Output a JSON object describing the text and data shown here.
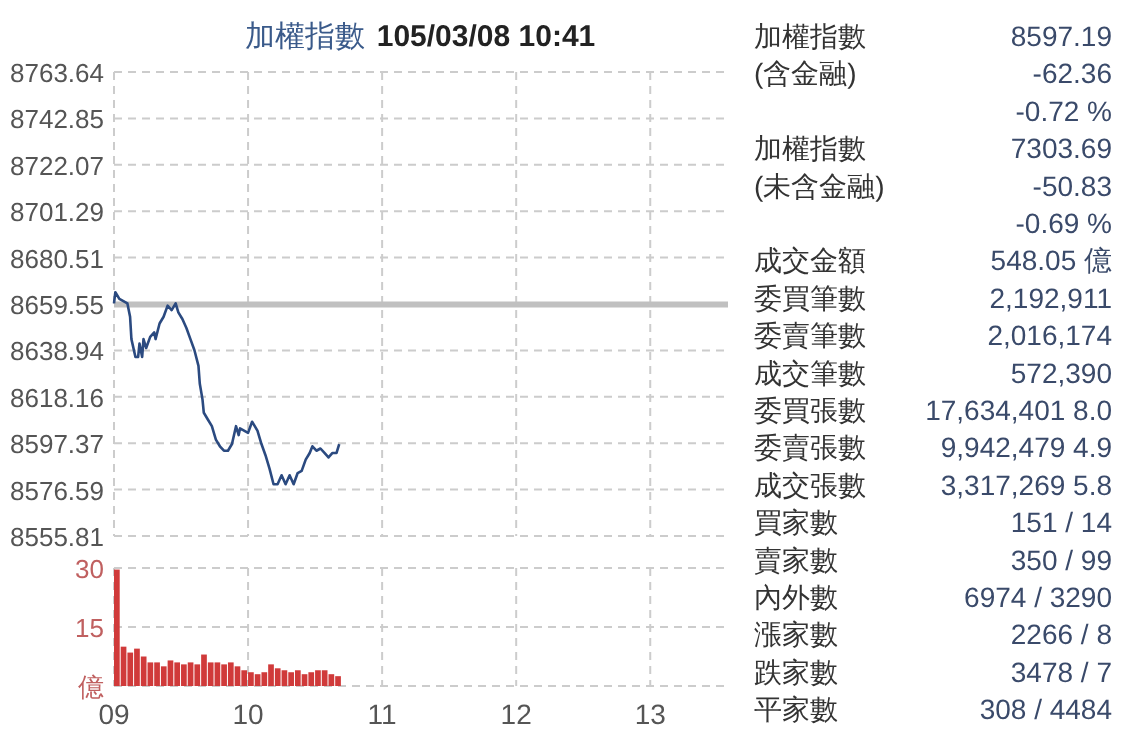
{
  "chart_data": [
    {
      "type": "line",
      "title": "加權指數",
      "subtitle": "105/03/08 10:41",
      "xlim": [
        9,
        13.58
      ],
      "xticks": [
        9,
        10,
        11,
        12,
        13
      ],
      "ylim": [
        8555.81,
        8763.64
      ],
      "yticks": [
        8555.81,
        8576.59,
        8597.37,
        8618.16,
        8638.94,
        8659.55,
        8680.51,
        8701.29,
        8722.07,
        8742.85,
        8763.64
      ],
      "grid": true,
      "tick_labels": "y",
      "ref_lines": [
        {
          "axis": "y",
          "value": 8659.55,
          "color": "#c0c0c0"
        }
      ],
      "series": [
        {
          "color": "#2b4a80",
          "x": [
            9.0,
            9.01,
            9.04,
            9.07,
            9.1,
            9.12,
            9.13,
            9.16,
            9.18,
            9.19,
            9.21,
            9.22,
            9.24,
            9.27,
            9.3,
            9.31,
            9.34,
            9.37,
            9.4,
            9.43,
            9.46,
            9.48,
            9.51,
            9.54,
            9.57,
            9.6,
            9.63,
            9.64,
            9.66,
            9.67,
            9.7,
            9.73,
            9.76,
            9.79,
            9.82,
            9.85,
            9.88,
            9.91,
            9.93,
            9.94,
            9.97,
            10.0,
            10.03,
            10.04,
            10.07,
            10.1,
            10.13,
            10.16,
            10.19,
            10.22,
            10.25,
            10.28,
            10.31,
            10.34,
            10.37,
            10.4,
            10.43,
            10.46,
            10.48,
            10.51,
            10.54,
            10.57,
            10.6,
            10.63,
            10.66,
            10.68
          ],
          "values": [
            8660,
            8665,
            8662,
            8661,
            8660,
            8654,
            8644,
            8636,
            8636,
            8642,
            8636,
            8644,
            8640,
            8645,
            8647,
            8644,
            8651,
            8654,
            8659,
            8657,
            8660,
            8656,
            8653,
            8649,
            8644,
            8639,
            8632,
            8624,
            8617,
            8611,
            8608,
            8605,
            8599,
            8596,
            8594,
            8594,
            8597,
            8605,
            8601,
            8604,
            8603,
            8602,
            8607,
            8606,
            8603,
            8597,
            8592,
            8586,
            8579,
            8579,
            8583,
            8579,
            8583,
            8579,
            8584,
            8585,
            8590,
            8593,
            8596,
            8594,
            8595,
            8593,
            8591,
            8593,
            8593,
            8597
          ]
        }
      ]
    },
    {
      "type": "bar",
      "xlim": [
        9,
        13.58
      ],
      "xticks": [
        {
          "value": 9,
          "label": "09"
        },
        10,
        11,
        12,
        13
      ],
      "ylim": [
        0,
        30
      ],
      "yticks": [
        {
          "value": 0,
          "label": "億"
        },
        15,
        30
      ],
      "grid": true,
      "x": [
        9.0,
        9.05,
        9.1,
        9.15,
        9.2,
        9.25,
        9.3,
        9.35,
        9.4,
        9.45,
        9.5,
        9.55,
        9.6,
        9.65,
        9.7,
        9.75,
        9.8,
        9.85,
        9.9,
        9.95,
        10.0,
        10.05,
        10.1,
        10.15,
        10.2,
        10.25,
        10.3,
        10.35,
        10.4,
        10.45,
        10.5,
        10.55,
        10.6,
        10.65
      ],
      "series": [
        {
          "color": "#d03a3a",
          "values": [
            29.6,
            10.0,
            8.5,
            9.5,
            7.5,
            6.0,
            6.0,
            5.0,
            6.5,
            6.0,
            5.5,
            6.0,
            5.5,
            8.0,
            6.0,
            6.0,
            5.5,
            6.0,
            5.0,
            4.0,
            3.5,
            3.0,
            3.5,
            5.5,
            4.5,
            4.0,
            3.5,
            4.0,
            3.0,
            3.5,
            4.0,
            4.0,
            3.0,
            2.5
          ]
        }
      ]
    },
    {
      "type": "other",
      "categories": [
        "加權指數",
        "(含金融)",
        null,
        "加權指數",
        "(未含金融)",
        null,
        "成交金額",
        "委買筆數",
        "委賣筆數",
        "成交筆數",
        "委買張數",
        "委賣張數",
        "成交張數",
        "買家數",
        "賣家數",
        "內外數",
        "漲家數",
        "跌家數",
        "平家數"
      ],
      "annotations": [
        "8597.19",
        "-62.36",
        "-0.72 %",
        "7303.69",
        "-50.83",
        "-0.69 %",
        "548.05 億",
        "2,192,911",
        "2,016,174",
        "572,390",
        "17,634,401 8.0",
        "9,942,479 4.9",
        "3,317,269 5.8",
        "151 / 14",
        "350 / 99",
        "6974 / 3290",
        "2266 / 8",
        "3478 / 7",
        "308 / 4484"
      ]
    }
  ]
}
